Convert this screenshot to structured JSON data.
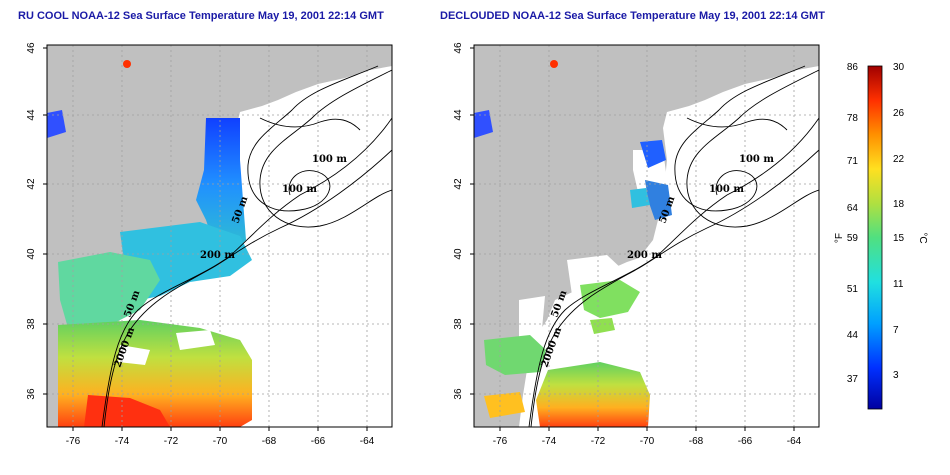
{
  "titles": {
    "left": "RU COOL NOAA-12 Sea Surface Temperature May 19, 2001 22:14 GMT",
    "right": "DECLOUDED NOAA-12 Sea Surface Temperature May 19, 2001 22:14 GMT"
  },
  "axes": {
    "lon_ticks": [
      "-76",
      "-74",
      "-72",
      "-70",
      "-68",
      "-66",
      "-64"
    ],
    "lat_ticks": [
      "36",
      "38",
      "40",
      "42",
      "44",
      "46"
    ]
  },
  "contour_labels": [
    "100 m",
    "100 m",
    "50 m",
    "200 m",
    "50 m",
    "2000 m"
  ],
  "colorbar": {
    "fahrenheit_ticks": [
      "86",
      "78",
      "71",
      "64",
      "59",
      "51",
      "44",
      "37"
    ],
    "celsius_ticks": [
      "30",
      "26",
      "22",
      "18",
      "15",
      "11",
      "7",
      "3"
    ],
    "fahrenheit_unit": "°F",
    "celsius_unit": "°C",
    "colors": [
      "#0000a0",
      "#0030ff",
      "#00a0ff",
      "#20e0e0",
      "#50e080",
      "#b0e040",
      "#ffe020",
      "#ff9000",
      "#ff3000",
      "#a00000"
    ]
  },
  "colors": {
    "land": "#c0c0c0",
    "title": "#1a1aa6",
    "grid": "#a0a0a0"
  }
}
